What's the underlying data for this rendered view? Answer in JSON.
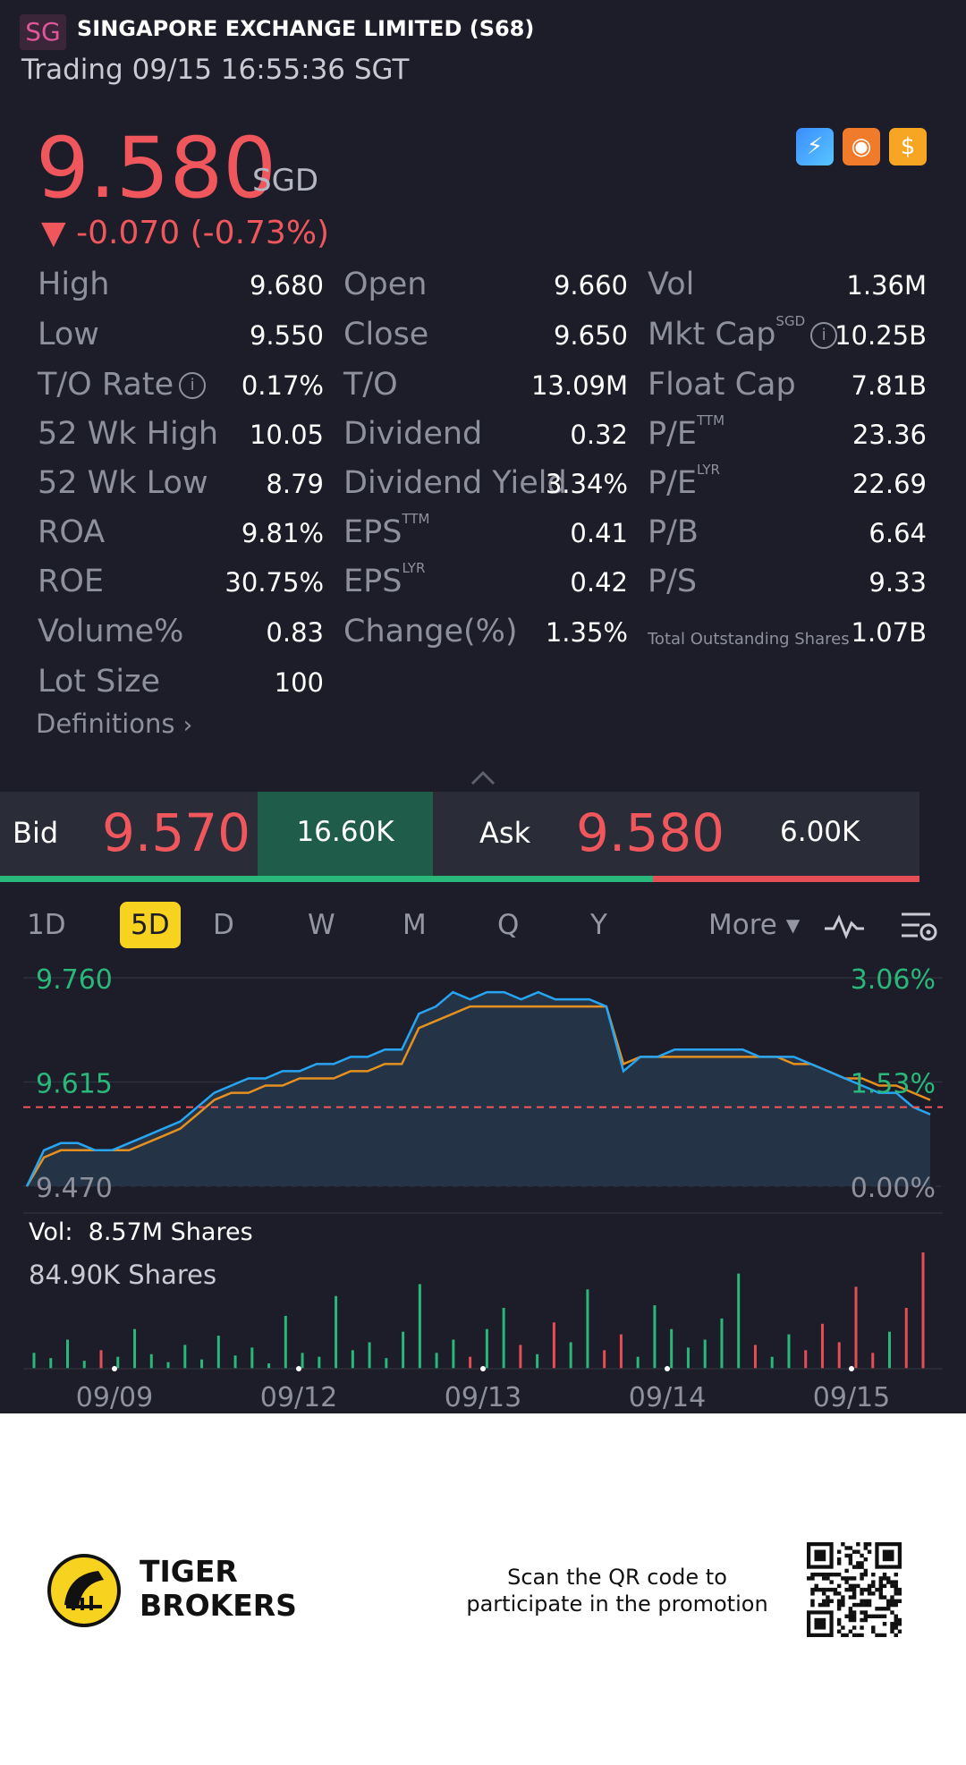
{
  "header": {
    "badge": "SG",
    "title": "SINGAPORE EXCHANGE LIMITED (S68)",
    "status": "Trading 09/15 16:55:36 SGT"
  },
  "quote": {
    "price": "9.580",
    "currency": "SGD",
    "change": "▼ -0.070 (-0.73%)",
    "colors": {
      "down": "#f0575d",
      "up": "#2ab77a",
      "accent": "#f7d21f"
    }
  },
  "icons": [
    "lightning-icon",
    "tiger-icon",
    "dollar-icon"
  ],
  "stats": {
    "col1": [
      {
        "label": "High",
        "value": "9.680"
      },
      {
        "label": "Low",
        "value": "9.550"
      },
      {
        "label": "T/O Rate",
        "value": "0.17%",
        "info": true
      },
      {
        "label": "52 Wk High",
        "value": "10.05"
      },
      {
        "label": "52 Wk Low",
        "value": "8.79"
      },
      {
        "label": "ROA",
        "value": "9.81%"
      },
      {
        "label": "ROE",
        "value": "30.75%"
      },
      {
        "label": "Volume%",
        "value": "0.83"
      },
      {
        "label": "Lot Size",
        "value": "100"
      }
    ],
    "col2": [
      {
        "label": "Open",
        "value": "9.660"
      },
      {
        "label": "Close",
        "value": "9.650"
      },
      {
        "label": "T/O",
        "value": "13.09M"
      },
      {
        "label": "Dividend",
        "value": "0.32"
      },
      {
        "label": "Dividend Yield",
        "value": "3.34%"
      },
      {
        "label": "EPS",
        "sup": "TTM",
        "value": "0.41"
      },
      {
        "label": "EPS",
        "sup": "LYR",
        "value": "0.42"
      },
      {
        "label": "Change(%)",
        "value": "1.35%"
      }
    ],
    "col3": [
      {
        "label": "Vol",
        "value": "1.36M"
      },
      {
        "label": "Mkt Cap",
        "sup": "SGD",
        "value": "10.25B",
        "info": true
      },
      {
        "label": "Float Cap",
        "value": "7.81B"
      },
      {
        "label": "P/E",
        "sup": "TTM",
        "value": "23.36"
      },
      {
        "label": "P/E",
        "sup": "LYR",
        "value": "22.69"
      },
      {
        "label": "P/B",
        "value": "6.64"
      },
      {
        "label": "P/S",
        "value": "9.33"
      },
      {
        "label": "Total Outstanding Shares",
        "value": "1.07B",
        "small": true
      }
    ],
    "definitions": "Definitions"
  },
  "orderbook": {
    "bid_label": "Bid",
    "bid_price": "9.570",
    "bid_qty": "16.60K",
    "ask_label": "Ask",
    "ask_price": "9.580",
    "ask_qty": "6.00K",
    "bid_ratio": 0.71
  },
  "chart_tabs": [
    {
      "label": "1D"
    },
    {
      "label": "5D",
      "active": true
    },
    {
      "label": "D"
    },
    {
      "label": "W"
    },
    {
      "label": "M"
    },
    {
      "label": "Q"
    },
    {
      "label": "Y"
    },
    {
      "label": "More ▾"
    }
  ],
  "chart_data": {
    "type": "line",
    "y_left_ticks": [
      "9.760",
      "9.615",
      "9.470"
    ],
    "y_right_ticks": [
      "3.06%",
      "1.53%",
      "0.00%"
    ],
    "ylim": [
      9.47,
      9.76
    ],
    "prev_close": 9.58,
    "x_ticks": [
      "09/09",
      "09/12",
      "09/13",
      "09/14",
      "09/15"
    ],
    "series": [
      {
        "values": [
          9.47,
          9.52,
          9.53,
          9.53,
          9.52,
          9.52,
          9.53,
          9.54,
          9.55,
          9.56,
          9.58,
          9.6,
          9.61,
          9.62,
          9.62,
          9.63,
          9.63,
          9.64,
          9.64,
          9.65,
          9.65,
          9.66,
          9.66,
          9.71,
          9.72,
          9.74,
          9.73,
          9.74,
          9.74,
          9.73,
          9.74,
          9.73,
          9.73,
          9.73,
          9.72,
          9.63,
          9.65,
          9.65,
          9.66,
          9.66,
          9.66,
          9.66,
          9.66,
          9.65,
          9.65,
          9.65,
          9.64,
          9.63,
          9.62,
          9.61,
          9.6,
          9.6,
          9.58,
          9.57
        ]
      },
      {
        "values": [
          9.47,
          9.51,
          9.52,
          9.52,
          9.52,
          9.52,
          9.52,
          9.53,
          9.54,
          9.55,
          9.57,
          9.59,
          9.6,
          9.6,
          9.61,
          9.61,
          9.62,
          9.62,
          9.62,
          9.63,
          9.63,
          9.64,
          9.64,
          9.69,
          9.7,
          9.71,
          9.72,
          9.72,
          9.72,
          9.72,
          9.72,
          9.72,
          9.72,
          9.72,
          9.72,
          9.64,
          9.65,
          9.65,
          9.65,
          9.65,
          9.65,
          9.65,
          9.65,
          9.65,
          9.65,
          9.64,
          9.64,
          9.63,
          9.62,
          9.62,
          9.61,
          9.61,
          9.6,
          9.59
        ]
      }
    ],
    "volume_label": "Vol:",
    "volume_total": "8.57M Shares",
    "volume_max": "84.90K Shares",
    "volume": [
      12,
      8,
      22,
      6,
      14,
      9,
      30,
      11,
      5,
      18,
      7,
      25,
      10,
      16,
      4,
      40,
      12,
      9,
      55,
      14,
      20,
      8,
      28,
      64,
      12,
      22,
      9,
      30,
      46,
      18,
      11,
      35,
      20,
      60,
      14,
      26,
      9,
      48,
      30,
      16,
      22,
      38,
      72,
      18,
      9,
      26,
      14,
      34,
      20,
      62,
      12,
      28,
      46,
      88
    ]
  },
  "footer": {
    "brand_line1": "TIGER",
    "brand_line2": "BROKERS",
    "promo_line1": "Scan the QR code to",
    "promo_line2": "participate in the promotion"
  }
}
